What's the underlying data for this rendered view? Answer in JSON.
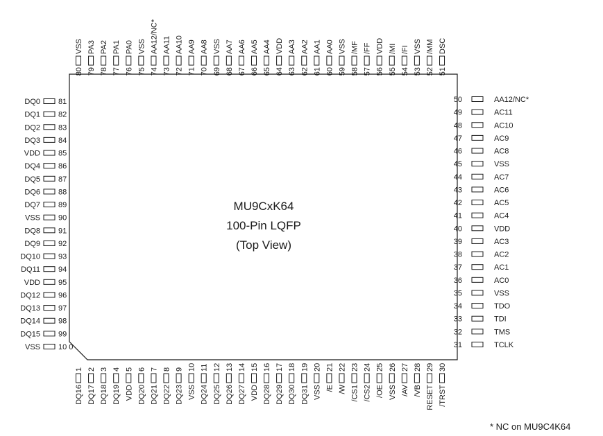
{
  "title": {
    "part": "MU9CxK64",
    "package": "100-Pin LQFP",
    "view": "(Top View)"
  },
  "footnote": "* NC on MU9C4K64",
  "pins": {
    "bottom": [
      {
        "num": "1",
        "name": "DQ16"
      },
      {
        "num": "2",
        "name": "DQ17"
      },
      {
        "num": "3",
        "name": "DQ18"
      },
      {
        "num": "4",
        "name": "DQ19"
      },
      {
        "num": "5",
        "name": "VDD"
      },
      {
        "num": "6",
        "name": "DQ20"
      },
      {
        "num": "7",
        "name": "DQ21"
      },
      {
        "num": "8",
        "name": "DQ22"
      },
      {
        "num": "9",
        "name": "DQ23"
      },
      {
        "num": "10",
        "name": "VSS"
      },
      {
        "num": "11",
        "name": "DQ24"
      },
      {
        "num": "12",
        "name": "DQ25"
      },
      {
        "num": "13",
        "name": "DQ26"
      },
      {
        "num": "14",
        "name": "DQ27"
      },
      {
        "num": "15",
        "name": "VDD"
      },
      {
        "num": "16",
        "name": "DQ28"
      },
      {
        "num": "17",
        "name": "DQ29"
      },
      {
        "num": "18",
        "name": "DQ30"
      },
      {
        "num": "19",
        "name": "DQ31"
      },
      {
        "num": "20",
        "name": "VSS"
      },
      {
        "num": "21",
        "name": "/E"
      },
      {
        "num": "22",
        "name": "/W"
      },
      {
        "num": "23",
        "name": "/CS1"
      },
      {
        "num": "24",
        "name": "/CS2"
      },
      {
        "num": "25",
        "name": "/OE"
      },
      {
        "num": "26",
        "name": "VSS"
      },
      {
        "num": "27",
        "name": "/AV"
      },
      {
        "num": "28",
        "name": "/VB"
      },
      {
        "num": "29",
        "name": "RESET"
      },
      {
        "num": "30",
        "name": "/TRST"
      }
    ],
    "right": [
      {
        "num": "31",
        "name": "TCLK"
      },
      {
        "num": "32",
        "name": "TMS"
      },
      {
        "num": "33",
        "name": "TDI"
      },
      {
        "num": "34",
        "name": "TDO"
      },
      {
        "num": "35",
        "name": "VSS"
      },
      {
        "num": "36",
        "name": "AC0"
      },
      {
        "num": "37",
        "name": "AC1"
      },
      {
        "num": "38",
        "name": "AC2"
      },
      {
        "num": "39",
        "name": "AC3"
      },
      {
        "num": "40",
        "name": "VDD"
      },
      {
        "num": "41",
        "name": "AC4"
      },
      {
        "num": "42",
        "name": "AC5"
      },
      {
        "num": "43",
        "name": "AC6"
      },
      {
        "num": "44",
        "name": "AC7"
      },
      {
        "num": "45",
        "name": "VSS"
      },
      {
        "num": "46",
        "name": "AC8"
      },
      {
        "num": "47",
        "name": "AC9"
      },
      {
        "num": "48",
        "name": "AC10"
      },
      {
        "num": "49",
        "name": "AC11"
      },
      {
        "num": "50",
        "name": "AA12/NC*"
      }
    ],
    "top": [
      {
        "num": "51",
        "name": "DSC"
      },
      {
        "num": "52",
        "name": "/MM"
      },
      {
        "num": "53",
        "name": "VSS"
      },
      {
        "num": "54",
        "name": "/FI"
      },
      {
        "num": "55",
        "name": "/MI"
      },
      {
        "num": "56",
        "name": "VDD"
      },
      {
        "num": "57",
        "name": "/FF"
      },
      {
        "num": "58",
        "name": "/MF"
      },
      {
        "num": "59",
        "name": "VSS"
      },
      {
        "num": "60",
        "name": "AA0"
      },
      {
        "num": "61",
        "name": "AA1"
      },
      {
        "num": "62",
        "name": "AA2"
      },
      {
        "num": "63",
        "name": "AA3"
      },
      {
        "num": "64",
        "name": "VDD"
      },
      {
        "num": "65",
        "name": "AA4"
      },
      {
        "num": "66",
        "name": "AA5"
      },
      {
        "num": "67",
        "name": "AA6"
      },
      {
        "num": "68",
        "name": "AA7"
      },
      {
        "num": "69",
        "name": "VSS"
      },
      {
        "num": "70",
        "name": "AA8"
      },
      {
        "num": "71",
        "name": "AA9"
      },
      {
        "num": "72",
        "name": "AA10"
      },
      {
        "num": "73",
        "name": "AA11"
      },
      {
        "num": "74",
        "name": "AA12/NC*"
      },
      {
        "num": "75",
        "name": "VSS"
      },
      {
        "num": "76",
        "name": "PA0"
      },
      {
        "num": "77",
        "name": "PA1"
      },
      {
        "num": "78",
        "name": "PA2"
      },
      {
        "num": "79",
        "name": "PA3"
      },
      {
        "num": "80",
        "name": "VSS"
      }
    ],
    "left": [
      {
        "num": "81",
        "name": "DQ0"
      },
      {
        "num": "82",
        "name": "DQ1"
      },
      {
        "num": "83",
        "name": "DQ2"
      },
      {
        "num": "84",
        "name": "DQ3"
      },
      {
        "num": "85",
        "name": "VDD"
      },
      {
        "num": "86",
        "name": "DQ4"
      },
      {
        "num": "87",
        "name": "DQ5"
      },
      {
        "num": "88",
        "name": "DQ6"
      },
      {
        "num": "89",
        "name": "DQ7"
      },
      {
        "num": "90",
        "name": "VSS"
      },
      {
        "num": "91",
        "name": "DQ8"
      },
      {
        "num": "92",
        "name": "DQ9"
      },
      {
        "num": "93",
        "name": "DQ10"
      },
      {
        "num": "94",
        "name": "DQ11"
      },
      {
        "num": "95",
        "name": "VDD"
      },
      {
        "num": "96",
        "name": "DQ12"
      },
      {
        "num": "97",
        "name": "DQ13"
      },
      {
        "num": "98",
        "name": "DQ14"
      },
      {
        "num": "99",
        "name": "DQ15"
      },
      {
        "num": "10 0",
        "name": "VSS"
      }
    ]
  }
}
